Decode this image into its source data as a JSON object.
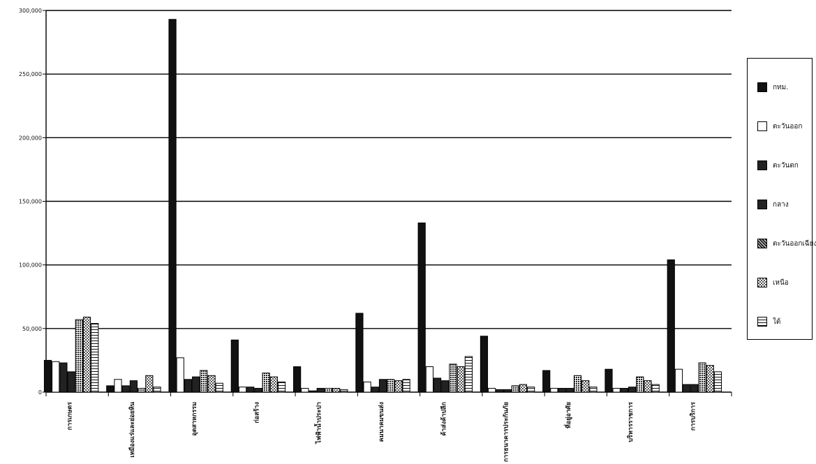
{
  "chart_data": {
    "type": "bar",
    "title": "",
    "xlabel": "",
    "ylabel": "",
    "ylim": [
      0,
      300000
    ],
    "yticks": [
      0,
      50000,
      100000,
      150000,
      200000,
      250000,
      300000
    ],
    "ytick_labels": [
      "0",
      "50,000",
      "100,000",
      "150,000",
      "200,000",
      "250,000",
      "300,000"
    ],
    "grid": true,
    "legend_position": "right",
    "categories": [
      "การเกษตร",
      "เหมืองแร่และย่อยหิน",
      "อุตสาหกรรม",
      "ก่อสร้าง",
      "ไฟฟ้าน้ำประปา",
      "คมนาคมขนส่ง",
      "ค้าส่งค้าปลีก",
      "การธนาคารประกันภัย",
      "ที่อยู่อาศัย",
      "บริหารราชการ",
      "การบริการ"
    ],
    "series": [
      {
        "name": "กทม.",
        "color": "#111111",
        "pattern": "solid",
        "values": [
          25000,
          5000,
          293000,
          41000,
          20000,
          62000,
          133000,
          44000,
          17000,
          18000,
          104000
        ]
      },
      {
        "name": "ตะวันออก",
        "color": "#ffffff",
        "pattern": "outline",
        "values": [
          24000,
          10000,
          27000,
          4000,
          3000,
          8000,
          20000,
          3000,
          3000,
          3000,
          18000
        ]
      },
      {
        "name": "ตะวันตก",
        "color": "#222222",
        "pattern": "solid",
        "values": [
          23000,
          5000,
          10000,
          4000,
          1000,
          4000,
          11000,
          2000,
          3000,
          3000,
          6000
        ]
      },
      {
        "name": "กลาง",
        "color": "#222222",
        "pattern": "solid",
        "values": [
          16000,
          9000,
          12000,
          3000,
          3000,
          10000,
          9000,
          2000,
          3000,
          4000,
          6000
        ]
      },
      {
        "name": "ตะวันออกเฉียงเหนือ",
        "color": "#555555",
        "pattern": "dense",
        "values": [
          57000,
          3000,
          17000,
          15000,
          3000,
          10000,
          22000,
          5000,
          13000,
          12000,
          23000
        ]
      },
      {
        "name": "เหนือ",
        "color": "#888888",
        "pattern": "checker",
        "values": [
          59000,
          13000,
          13000,
          12000,
          3000,
          9000,
          20000,
          6000,
          9000,
          9000,
          21000
        ]
      },
      {
        "name": "ใต้",
        "color": "#ffffff",
        "pattern": "striped",
        "values": [
          54000,
          4000,
          7000,
          8000,
          2000,
          10000,
          28000,
          4000,
          4000,
          6000,
          16000
        ]
      }
    ]
  }
}
